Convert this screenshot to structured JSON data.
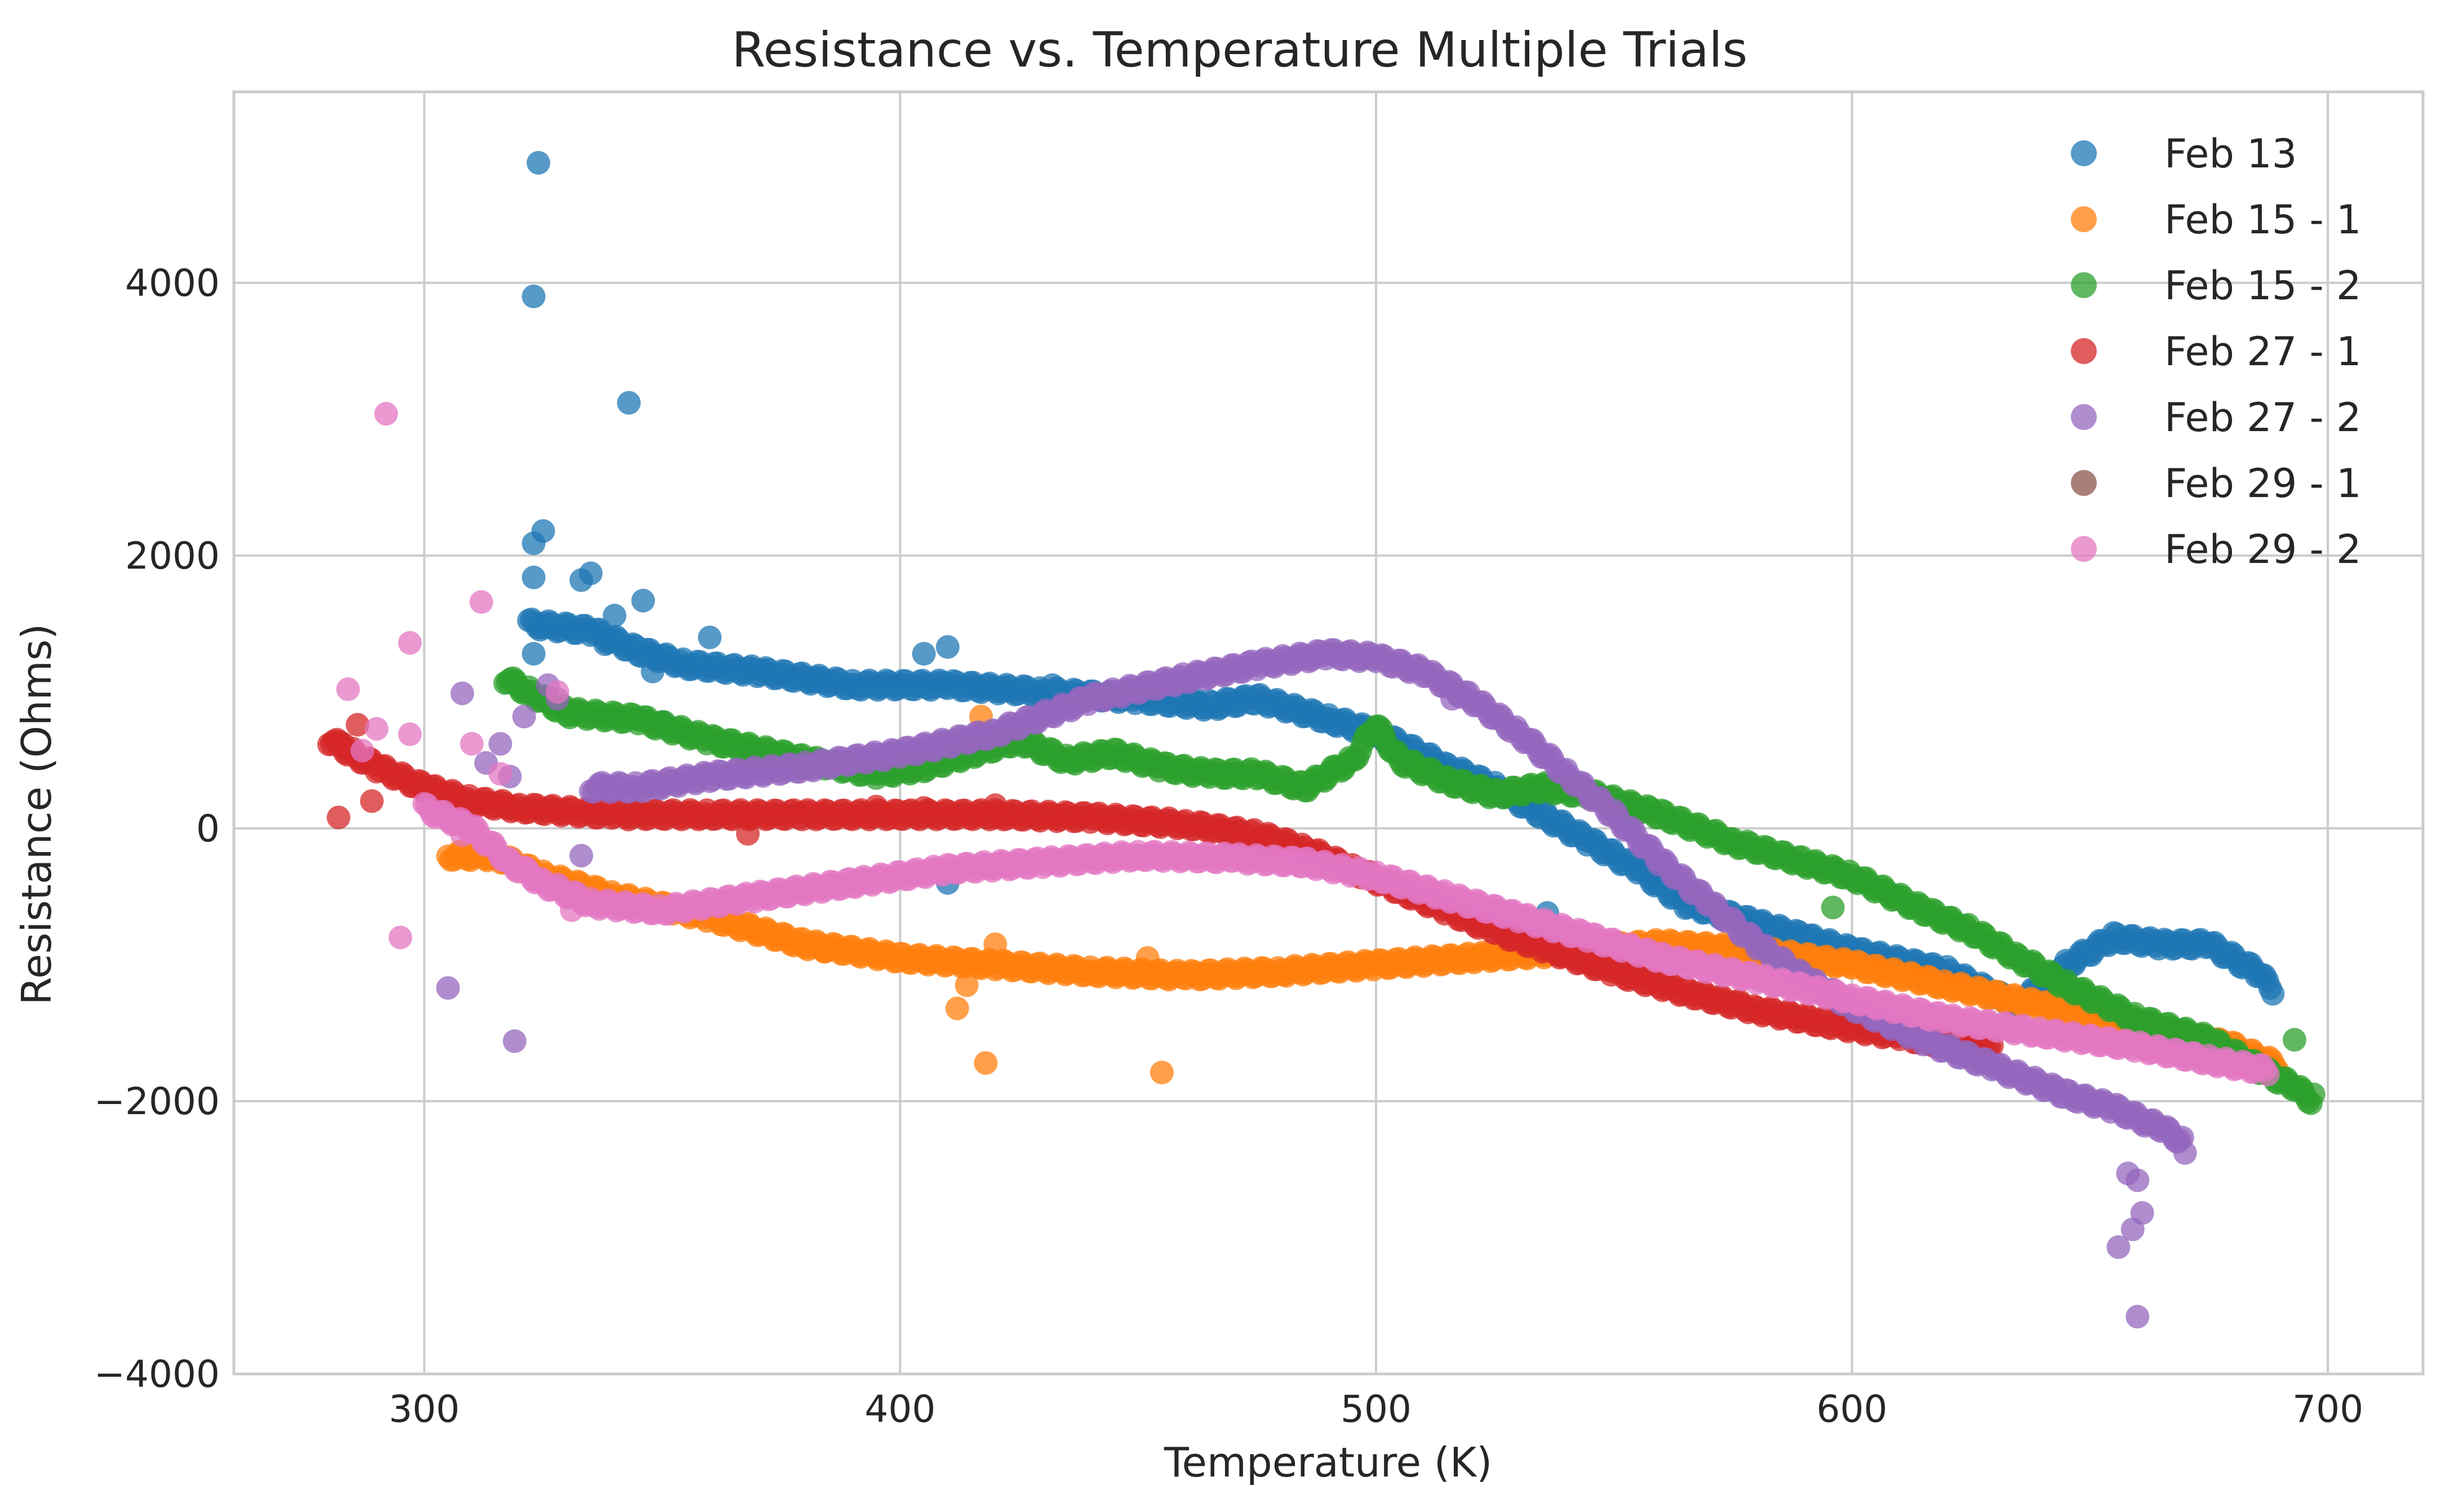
{
  "chart_data": {
    "type": "scatter",
    "title": "Resistance vs. Temperature Multiple Trials",
    "xlabel": "Temperature (K)",
    "ylabel": "Resistance (Ohms)",
    "xlim": [
      260,
      720
    ],
    "ylim": [
      -4000,
      5400
    ],
    "xticks": [
      300,
      400,
      500,
      600,
      700
    ],
    "yticks": [
      -4000,
      -2000,
      0,
      2000,
      4000
    ],
    "xtick_labels": [
      "300",
      "400",
      "500",
      "600",
      "700"
    ],
    "ytick_labels": [
      "−4000",
      "−2000",
      "0",
      "2000",
      "4000"
    ],
    "grid": true,
    "legend_position": "top-right",
    "series": [
      {
        "name": "Feb 13",
        "color": "#1f77b4",
        "trend": [
          [
            322,
            1500
          ],
          [
            335,
            1450
          ],
          [
            345,
            1300
          ],
          [
            355,
            1200
          ],
          [
            370,
            1150
          ],
          [
            390,
            1050
          ],
          [
            410,
            1050
          ],
          [
            430,
            1000
          ],
          [
            450,
            950
          ],
          [
            465,
            900
          ],
          [
            475,
            950
          ],
          [
            490,
            800
          ],
          [
            500,
            700
          ],
          [
            515,
            450
          ],
          [
            525,
            300
          ],
          [
            535,
            100
          ],
          [
            545,
            -100
          ],
          [
            555,
            -300
          ],
          [
            565,
            -550
          ],
          [
            580,
            -700
          ],
          [
            590,
            -800
          ],
          [
            600,
            -900
          ],
          [
            620,
            -1050
          ],
          [
            635,
            -1300
          ],
          [
            645,
            -1000
          ],
          [
            655,
            -800
          ],
          [
            665,
            -850
          ],
          [
            675,
            -850
          ],
          [
            685,
            -1050
          ],
          [
            689,
            -1200
          ]
        ],
        "outliers": [
          [
            324,
            4880
          ],
          [
            323,
            3900
          ],
          [
            343,
            3120
          ],
          [
            325,
            2180
          ],
          [
            323,
            2090
          ],
          [
            323,
            1840
          ],
          [
            333,
            1820
          ],
          [
            335,
            1870
          ],
          [
            346,
            1670
          ],
          [
            340,
            1560
          ],
          [
            330,
            1480
          ],
          [
            338,
            1350
          ],
          [
            348,
            1150
          ],
          [
            360,
            1400
          ],
          [
            405,
            1280
          ],
          [
            410,
            1330
          ],
          [
            432,
            1050
          ],
          [
            410,
            -400
          ],
          [
            350,
            780
          ],
          [
            323,
            1280
          ],
          [
            536,
            -620
          ]
        ]
      },
      {
        "name": "Feb 15 - 1",
        "color": "#ff7f0e",
        "trend": [
          [
            305,
            -200
          ],
          [
            315,
            -200
          ],
          [
            325,
            -350
          ],
          [
            340,
            -500
          ],
          [
            360,
            -650
          ],
          [
            380,
            -850
          ],
          [
            400,
            -950
          ],
          [
            420,
            -1000
          ],
          [
            440,
            -1050
          ],
          [
            460,
            -1080
          ],
          [
            480,
            -1050
          ],
          [
            500,
            -1000
          ],
          [
            520,
            -950
          ],
          [
            540,
            -900
          ],
          [
            560,
            -850
          ],
          [
            580,
            -900
          ],
          [
            600,
            -1000
          ],
          [
            620,
            -1150
          ],
          [
            640,
            -1300
          ],
          [
            660,
            -1450
          ],
          [
            680,
            -1600
          ],
          [
            690,
            -1750
          ]
        ],
        "outliers": [
          [
            418,
            -1720
          ],
          [
            455,
            -1790
          ],
          [
            412,
            -1320
          ],
          [
            414,
            -1150
          ],
          [
            420,
            -850
          ],
          [
            417,
            820
          ],
          [
            452,
            -950
          ],
          [
            384,
            -900
          ]
        ]
      },
      {
        "name": "Feb 15 - 2",
        "color": "#2ca02c",
        "trend": [
          [
            317,
            1100
          ],
          [
            322,
            1000
          ],
          [
            330,
            850
          ],
          [
            345,
            800
          ],
          [
            360,
            650
          ],
          [
            380,
            500
          ],
          [
            395,
            400
          ],
          [
            405,
            450
          ],
          [
            415,
            550
          ],
          [
            425,
            650
          ],
          [
            435,
            500
          ],
          [
            445,
            550
          ],
          [
            455,
            450
          ],
          [
            465,
            400
          ],
          [
            475,
            400
          ],
          [
            485,
            300
          ],
          [
            495,
            500
          ],
          [
            500,
            750
          ],
          [
            505,
            500
          ],
          [
            515,
            350
          ],
          [
            525,
            250
          ],
          [
            535,
            300
          ],
          [
            545,
            250
          ],
          [
            560,
            100
          ],
          [
            575,
            -100
          ],
          [
            590,
            -250
          ],
          [
            600,
            -350
          ],
          [
            615,
            -600
          ],
          [
            625,
            -750
          ],
          [
            635,
            -950
          ],
          [
            645,
            -1150
          ],
          [
            660,
            -1400
          ],
          [
            675,
            -1550
          ],
          [
            685,
            -1750
          ],
          [
            693,
            -1900
          ],
          [
            697,
            -2000
          ]
        ],
        "outliers": [
          [
            596,
            -300
          ],
          [
            596,
            -580
          ],
          [
            693,
            -1550
          ],
          [
            697,
            -1950
          ]
        ]
      },
      {
        "name": "Feb 27 - 1",
        "color": "#d62728",
        "trend": [
          [
            280,
            650
          ],
          [
            285,
            550
          ],
          [
            290,
            450
          ],
          [
            300,
            300
          ],
          [
            310,
            200
          ],
          [
            320,
            150
          ],
          [
            340,
            100
          ],
          [
            360,
            100
          ],
          [
            380,
            100
          ],
          [
            400,
            100
          ],
          [
            420,
            100
          ],
          [
            440,
            80
          ],
          [
            460,
            30
          ],
          [
            475,
            -50
          ],
          [
            485,
            -150
          ],
          [
            495,
            -300
          ],
          [
            505,
            -450
          ],
          [
            515,
            -600
          ],
          [
            525,
            -750
          ],
          [
            535,
            -870
          ],
          [
            550,
            -1050
          ],
          [
            565,
            -1200
          ],
          [
            580,
            -1330
          ],
          [
            595,
            -1430
          ],
          [
            610,
            -1520
          ],
          [
            622,
            -1590
          ],
          [
            630,
            -1630
          ]
        ],
        "outliers": [
          [
            282,
            80
          ],
          [
            289,
            200
          ],
          [
            286,
            760
          ],
          [
            283,
            620
          ],
          [
            368,
            -40
          ],
          [
            395,
            160
          ],
          [
            405,
            150
          ],
          [
            420,
            170
          ]
        ]
      },
      {
        "name": "Feb 27 - 2",
        "color": "#9467bd",
        "trend": [
          [
            335,
            300
          ],
          [
            345,
            300
          ],
          [
            360,
            380
          ],
          [
            380,
            450
          ],
          [
            400,
            550
          ],
          [
            420,
            700
          ],
          [
            440,
            950
          ],
          [
            460,
            1100
          ],
          [
            475,
            1200
          ],
          [
            490,
            1280
          ],
          [
            500,
            1250
          ],
          [
            510,
            1150
          ],
          [
            520,
            950
          ],
          [
            530,
            700
          ],
          [
            540,
            400
          ],
          [
            550,
            100
          ],
          [
            560,
            -250
          ],
          [
            570,
            -550
          ],
          [
            580,
            -850
          ],
          [
            590,
            -1100
          ],
          [
            600,
            -1300
          ],
          [
            615,
            -1550
          ],
          [
            630,
            -1750
          ],
          [
            645,
            -1950
          ],
          [
            655,
            -2050
          ],
          [
            665,
            -2200
          ],
          [
            670,
            -2300
          ]
        ],
        "outliers": [
          [
            305,
            -1170
          ],
          [
            319,
            -1560
          ],
          [
            308,
            990
          ],
          [
            326,
            1050
          ],
          [
            328,
            950
          ],
          [
            321,
            820
          ],
          [
            316,
            620
          ],
          [
            313,
            480
          ],
          [
            318,
            380
          ],
          [
            333,
            -200
          ],
          [
            656,
            -3070
          ],
          [
            660,
            -3580
          ],
          [
            661,
            -2820
          ],
          [
            659,
            -2940
          ],
          [
            658,
            -2530
          ],
          [
            660,
            -2580
          ],
          [
            670,
            -2380
          ],
          [
            516,
            950
          ]
        ]
      },
      {
        "name": "Feb 29 - 1",
        "color": "#8c564b",
        "trend": [],
        "outliers": []
      },
      {
        "name": "Feb 29 - 2",
        "color": "#e377c2",
        "trend": [
          [
            300,
            150
          ],
          [
            310,
            0
          ],
          [
            318,
            -250
          ],
          [
            325,
            -400
          ],
          [
            335,
            -550
          ],
          [
            350,
            -600
          ],
          [
            370,
            -500
          ],
          [
            390,
            -400
          ],
          [
            410,
            -300
          ],
          [
            430,
            -250
          ],
          [
            450,
            -200
          ],
          [
            470,
            -220
          ],
          [
            485,
            -250
          ],
          [
            500,
            -350
          ],
          [
            515,
            -500
          ],
          [
            530,
            -650
          ],
          [
            545,
            -800
          ],
          [
            560,
            -950
          ],
          [
            580,
            -1100
          ],
          [
            600,
            -1250
          ],
          [
            620,
            -1400
          ],
          [
            640,
            -1500
          ],
          [
            660,
            -1600
          ],
          [
            675,
            -1700
          ],
          [
            688,
            -1780
          ]
        ],
        "outliers": [
          [
            292,
            3040
          ],
          [
            312,
            1660
          ],
          [
            297,
            1360
          ],
          [
            284,
            1020
          ],
          [
            310,
            620
          ],
          [
            316,
            400
          ],
          [
            328,
            1000
          ],
          [
            290,
            730
          ],
          [
            297,
            690
          ],
          [
            287,
            570
          ],
          [
            308,
            -50
          ],
          [
            295,
            -800
          ],
          [
            322,
            -320
          ],
          [
            331,
            -600
          ]
        ]
      }
    ]
  }
}
